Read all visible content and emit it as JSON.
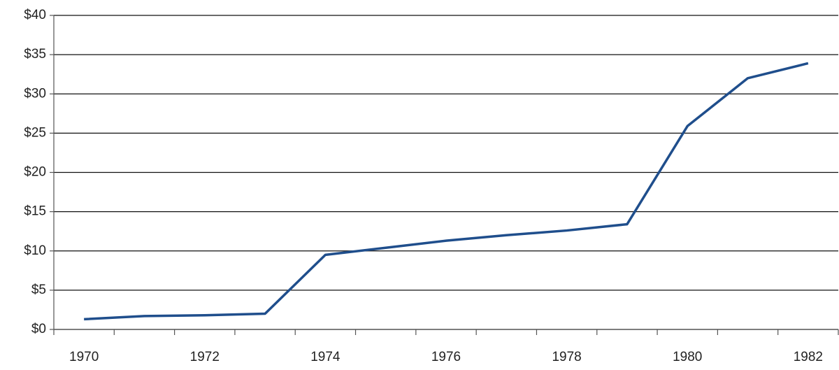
{
  "chart_data": {
    "type": "line",
    "categories": [
      "1970",
      null,
      "1972",
      null,
      "1974",
      null,
      "1976",
      null,
      "1978",
      null,
      "1980",
      null,
      "1982"
    ],
    "series": [
      {
        "color": "#1f4e8c",
        "values": [
          1.3,
          1.7,
          1.8,
          2.0,
          9.5,
          10.4,
          11.3,
          12.0,
          12.6,
          13.4,
          25.9,
          32.0,
          33.9
        ]
      }
    ],
    "ylim": [
      0,
      40
    ],
    "yticks": [
      {
        "value": 0,
        "label": "$0"
      },
      {
        "value": 5,
        "label": "$5"
      },
      {
        "value": 10,
        "label": "$10"
      },
      {
        "value": 15,
        "label": "$15"
      },
      {
        "value": 20,
        "label": "$20"
      },
      {
        "value": 25,
        "label": "$25"
      },
      {
        "value": 30,
        "label": "$30"
      },
      {
        "value": 35,
        "label": "$35"
      },
      {
        "value": 40,
        "label": "$40"
      }
    ],
    "grid": true
  }
}
